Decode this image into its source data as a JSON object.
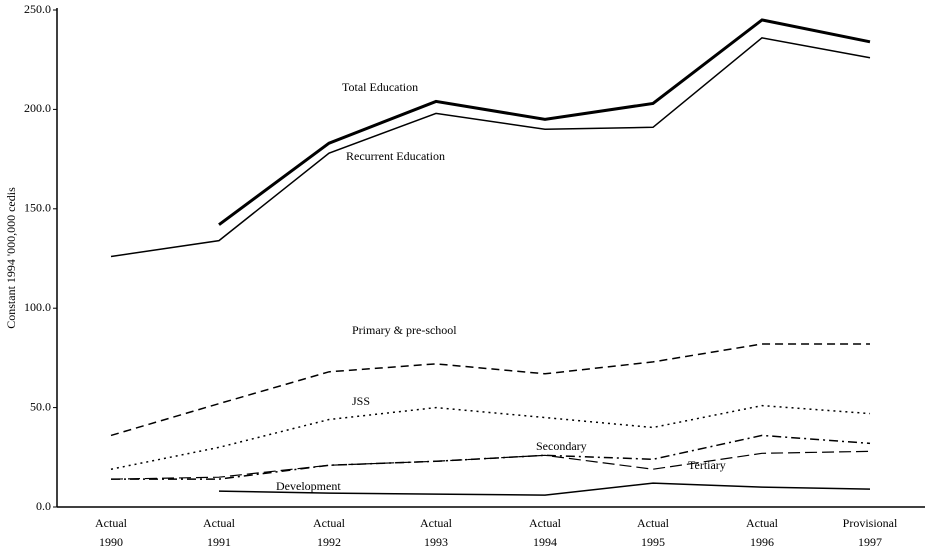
{
  "chart_data": {
    "type": "line",
    "y_label": "Constant 1994 '000,000 cedis",
    "categories": [
      "Actual 1990",
      "Actual 1991",
      "Actual 1992",
      "Actual 1993",
      "Actual 1994",
      "Actual 1995",
      "Actual 1996",
      "Provisional 1997"
    ],
    "ylim": [
      0,
      250
    ],
    "yticks": [
      {
        "value": 0,
        "label": "0.0"
      },
      {
        "value": 50,
        "label": "50.0"
      },
      {
        "value": 100,
        "label": "100.0"
      },
      {
        "value": 150,
        "label": "150.0"
      },
      {
        "value": 200,
        "label": "200.0"
      },
      {
        "value": 250,
        "label": "250.0"
      }
    ],
    "grid": false,
    "series": [
      {
        "name": "Total Education",
        "color": "#000000",
        "style": "solid",
        "width": 3,
        "values": [
          null,
          142,
          183,
          204,
          195,
          203,
          245,
          234
        ]
      },
      {
        "name": "Recurrent Education",
        "color": "#000000",
        "style": "solid",
        "width": 1.5,
        "values": [
          126,
          134,
          178,
          198,
          190,
          191,
          236,
          226
        ]
      },
      {
        "name": "Primary & pre-school",
        "color": "#000000",
        "style": "dashed",
        "width": 1.5,
        "values": [
          36,
          52,
          68,
          72,
          67,
          73,
          82,
          82
        ]
      },
      {
        "name": "JSS",
        "color": "#000000",
        "style": "dotted",
        "width": 1.5,
        "values": [
          19,
          30,
          44,
          50,
          45,
          40,
          51,
          47
        ]
      },
      {
        "name": "Secondary",
        "color": "#000000",
        "style": "dashdot",
        "width": 1.5,
        "values": [
          14,
          14,
          21,
          23,
          26,
          24,
          36,
          32
        ]
      },
      {
        "name": "Tertiary",
        "color": "#000000",
        "style": "longdash",
        "width": 1.2,
        "values": [
          14,
          15,
          21,
          23,
          26,
          19,
          27,
          28
        ]
      },
      {
        "name": "Development",
        "color": "#000000",
        "style": "solid",
        "width": 1.5,
        "values": [
          null,
          8,
          7,
          6.5,
          6,
          12,
          10,
          9
        ]
      }
    ]
  }
}
